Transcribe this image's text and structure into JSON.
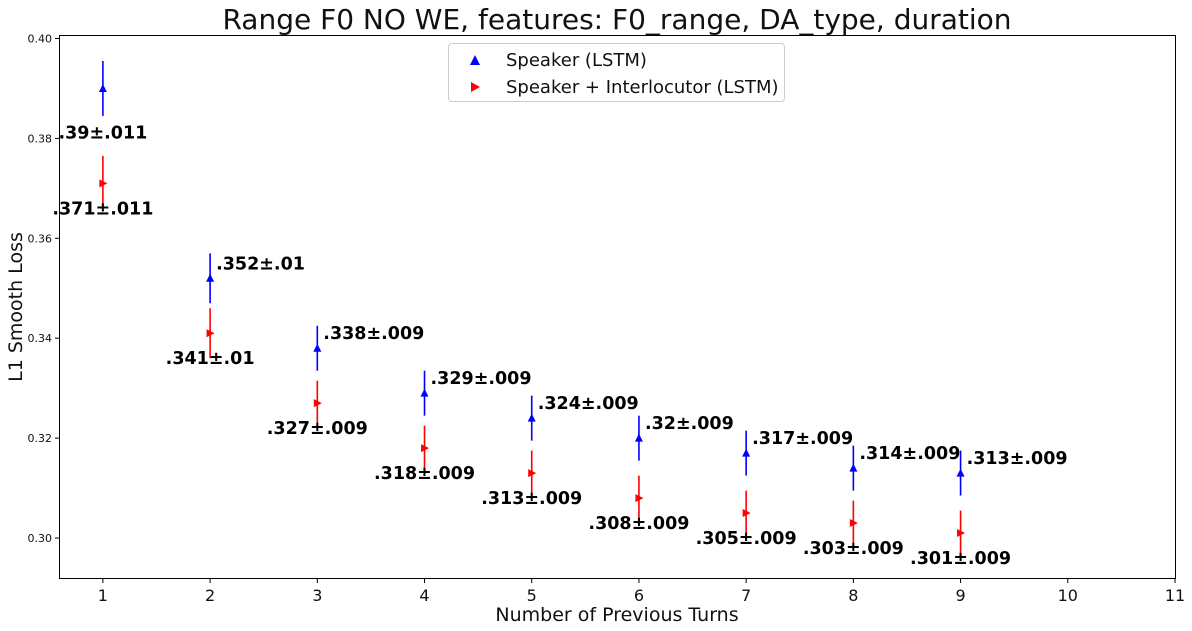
{
  "chart_data": {
    "type": "scatter",
    "title": "Range F0 NO WE, features: F0_range, DA_type, duration",
    "xlabel": "Number of Previous Turns",
    "ylabel": "L1 Smooth Loss",
    "xlim": [
      0.6,
      11
    ],
    "ylim": [
      0.292,
      0.4005
    ],
    "x_ticks": [
      "1",
      "2",
      "3",
      "4",
      "5",
      "6",
      "7",
      "8",
      "9",
      "10",
      "11"
    ],
    "y_ticks": [
      "0.30",
      "0.32",
      "0.34",
      "0.36",
      "0.38",
      "0.40"
    ],
    "grid": false,
    "legend_position": "top-center",
    "series": [
      {
        "name": "Speaker (LSTM)",
        "color": "#0000ff",
        "marker": "triangle-up",
        "x": [
          1,
          2,
          3,
          4,
          5,
          6,
          7,
          8,
          9
        ],
        "y": [
          0.39,
          0.352,
          0.338,
          0.329,
          0.324,
          0.32,
          0.317,
          0.314,
          0.313
        ],
        "err": [
          0.0055,
          0.005,
          0.0045,
          0.0045,
          0.0045,
          0.0045,
          0.0045,
          0.0045,
          0.0045
        ],
        "labels": [
          ".39±.011",
          ".352±.01",
          ".338±.009",
          ".329±.009",
          ".324±.009",
          ".32±.009",
          ".317±.009",
          ".314±.009",
          ".313±.009"
        ]
      },
      {
        "name": "Speaker + Interlocutor (LSTM)",
        "color": "#ff0000",
        "marker": "triangle-right",
        "x": [
          1,
          2,
          3,
          4,
          5,
          6,
          7,
          8,
          9
        ],
        "y": [
          0.371,
          0.341,
          0.327,
          0.318,
          0.313,
          0.308,
          0.305,
          0.303,
          0.301
        ],
        "err": [
          0.0055,
          0.005,
          0.0045,
          0.0045,
          0.0045,
          0.0045,
          0.0045,
          0.0045,
          0.0045
        ],
        "labels": [
          ".371±.011",
          ".341±.01",
          ".327±.009",
          ".318±.009",
          ".313±.009",
          ".308±.009",
          ".305±.009",
          ".303±.009",
          ".301±.009"
        ]
      }
    ]
  }
}
